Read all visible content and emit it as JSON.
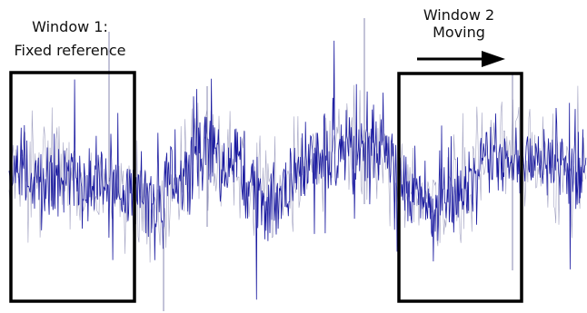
{
  "diagram": {
    "window1": {
      "label_line1": "Window 1:",
      "label_line2": "Fixed reference"
    },
    "window2": {
      "label_line1": "Window 2",
      "label_line2": "Moving",
      "arrow_direction": "right"
    }
  },
  "colors": {
    "signal": "#1a1aa0",
    "signal_light": "#7a7aa8",
    "box": "#000000",
    "text": "#111111"
  }
}
